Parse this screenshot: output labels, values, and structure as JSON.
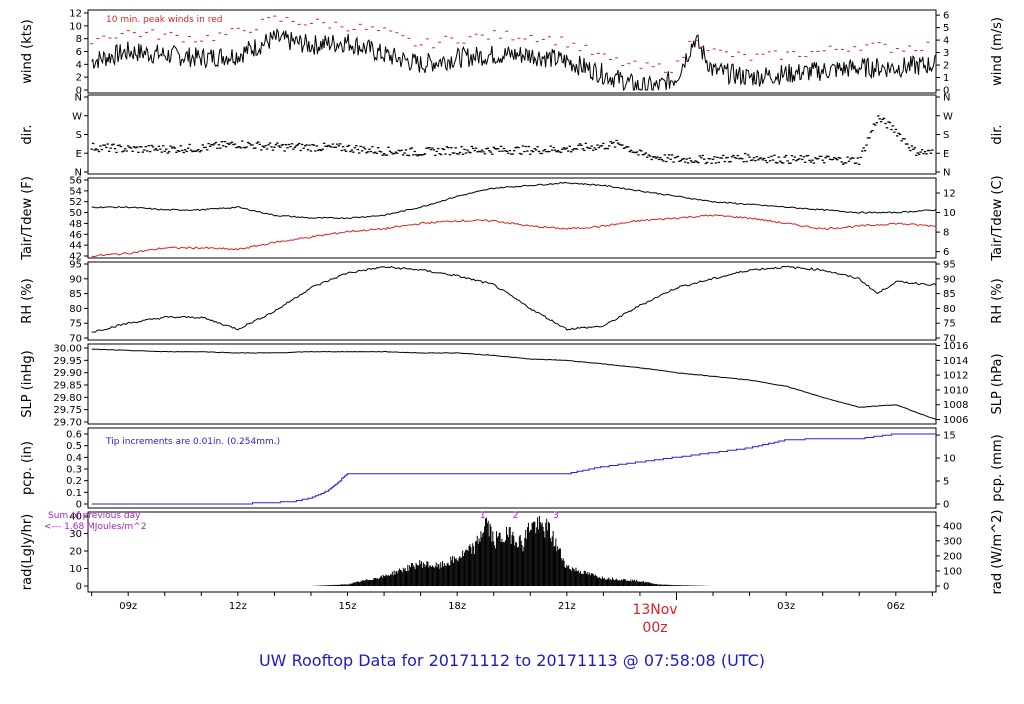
{
  "title": "UW Rooftop Data for 20171112  to  20171113 @ 07:58:08  (UTC)",
  "x_ticks": [
    "09z",
    "12z",
    "15z",
    "18z",
    "21z",
    "03z",
    "06z"
  ],
  "date_label": "13Nov",
  "date_sub_label": "00z",
  "colors": {
    "title": "#1a1acc",
    "peak": "#dd2222",
    "dew": "#dd2222",
    "pcp": "#2222dd",
    "annot_rad": "#aa22cc",
    "date": "#dd2222",
    "series": "#000000"
  },
  "chart_data": [
    {
      "type": "line",
      "ylabel": "wind (kts)",
      "ylabel_right": "wind (m/s)",
      "annotation": "10 min. peak winds in red",
      "ylim": [
        0,
        12
      ],
      "ticks_left": [
        "0",
        "2",
        "4",
        "6",
        "8",
        "10",
        "12"
      ],
      "ticks_right": [
        "0",
        "1",
        "2",
        "3",
        "4",
        "5",
        "6"
      ],
      "series": [
        {
          "x": [
            8,
            9,
            10,
            11,
            12,
            13,
            14,
            15,
            16,
            17,
            18,
            19,
            20,
            21,
            22,
            22.5,
            23,
            23.5,
            24,
            24.5,
            25,
            26,
            27,
            28,
            29,
            30,
            31.1
          ],
          "y": [
            4.5,
            6,
            5.5,
            5,
            5.5,
            8,
            7,
            7.5,
            5.5,
            4,
            5,
            5.5,
            5.5,
            4.5,
            2.5,
            1.5,
            0.5,
            0.5,
            2,
            8,
            3,
            2,
            2.5,
            3,
            3.5,
            3.5,
            4
          ]
        },
        {
          "x": [
            8,
            9,
            10,
            11,
            12,
            13,
            14,
            15,
            16,
            17,
            18,
            19,
            20,
            21,
            22,
            23,
            24,
            24.5,
            25,
            26,
            27,
            28,
            29,
            30,
            31
          ],
          "y": [
            8,
            9,
            8.5,
            8,
            9,
            11,
            10.5,
            10,
            9,
            7,
            8,
            8.5,
            8.5,
            7.5,
            5,
            3.5,
            3.5,
            8.5,
            6,
            5,
            5.5,
            6,
            7,
            6.5,
            7
          ]
        }
      ]
    },
    {
      "type": "scatter",
      "ylabel": "dir.",
      "ylabel_right": "dir.",
      "ticks_left": [
        "N",
        "E",
        "S",
        "W",
        "N"
      ],
      "ticks_right": [
        "N",
        "E",
        "S",
        "W",
        "N"
      ],
      "ylim": [
        0,
        360
      ],
      "x": [
        8,
        9,
        10,
        11,
        12,
        13,
        14,
        15,
        16,
        17,
        18,
        19,
        20,
        21,
        22,
        22.5,
        23,
        23.5,
        24,
        25,
        26,
        27,
        28,
        29,
        29.5,
        30,
        30.5,
        31
      ],
      "y": [
        120,
        110,
        110,
        115,
        135,
        120,
        120,
        115,
        100,
        95,
        105,
        105,
        105,
        110,
        125,
        135,
        85,
        70,
        60,
        60,
        70,
        60,
        60,
        55,
        260,
        200,
        100,
        90
      ]
    },
    {
      "type": "line",
      "ylabel": "Tair/Tdew (F)",
      "ylabel_right": "Tair/Tdew (C)",
      "ylim": [
        42,
        56
      ],
      "ticks_left": [
        "42",
        "44",
        "46",
        "48",
        "50",
        "52",
        "54",
        "56"
      ],
      "ticks_right": [
        "6",
        "8",
        "10",
        "12"
      ],
      "x": [
        8,
        9,
        10,
        11,
        12,
        13,
        14,
        15,
        16,
        17,
        18,
        19,
        20,
        21,
        22,
        23,
        24,
        25,
        26,
        27,
        28,
        29,
        30,
        31.1
      ],
      "series": [
        {
          "y": [
            51,
            51,
            50.5,
            50.5,
            51,
            49.5,
            49,
            49,
            49.5,
            51,
            53,
            54.5,
            55,
            55.5,
            55,
            54,
            53,
            52,
            51.5,
            51,
            50.5,
            50,
            50,
            50.5
          ]
        },
        {
          "y": [
            42,
            42.5,
            43.5,
            43.5,
            43.2,
            44.5,
            45.5,
            46.5,
            47,
            48,
            48.5,
            48.5,
            47.5,
            47,
            47.5,
            48.5,
            49,
            49.5,
            49,
            48,
            47,
            47.5,
            48,
            47.5
          ]
        }
      ]
    },
    {
      "type": "line",
      "ylabel": "RH (%)",
      "ylabel_right": "RH (%)",
      "ylim": [
        70,
        95
      ],
      "ticks_left": [
        "70",
        "75",
        "80",
        "85",
        "90",
        "95"
      ],
      "ticks_right": [
        "70",
        "75",
        "80",
        "85",
        "90",
        "95"
      ],
      "x": [
        8,
        9,
        10,
        11,
        12,
        13,
        14,
        15,
        16,
        17,
        18,
        19,
        20,
        21,
        22,
        23,
        24,
        25,
        26,
        27,
        28,
        29,
        29.5,
        30,
        31.1
      ],
      "values": [
        72,
        75,
        77,
        77,
        73,
        79,
        87,
        92,
        94,
        93,
        91,
        88,
        80,
        73,
        74,
        81,
        87,
        90,
        93,
        94,
        93,
        90,
        85,
        89,
        88
      ]
    },
    {
      "type": "line",
      "ylabel": "SLP (inHg)",
      "ylabel_right": "SLP (hPa)",
      "ylim": [
        29.7,
        30.0
      ],
      "ticks_left": [
        "29.70",
        "29.75",
        "29.80",
        "29.85",
        "29.90",
        "29.95",
        "30.00"
      ],
      "ticks_right": [
        "1006",
        "1008",
        "1010",
        "1012",
        "1014",
        "1016"
      ],
      "x": [
        8,
        9,
        10,
        11,
        12,
        13,
        14,
        15,
        16,
        17,
        18,
        19,
        20,
        21,
        22,
        23,
        24,
        25,
        26,
        27,
        28,
        29,
        30,
        31.1
      ],
      "values": [
        29.995,
        29.99,
        29.985,
        29.985,
        29.98,
        29.98,
        29.985,
        29.985,
        29.985,
        29.98,
        29.98,
        29.97,
        29.955,
        29.95,
        29.935,
        29.92,
        29.9,
        29.885,
        29.87,
        29.845,
        29.8,
        29.76,
        29.77,
        29.71
      ]
    },
    {
      "type": "area",
      "ylabel": "pcp. (in)",
      "ylabel_right": "pcp. (mm)",
      "annotation": "Tip increments are 0.01in. (0.254mm.)",
      "ylim": [
        0,
        0.6
      ],
      "ticks_left": [
        "0",
        "0.1",
        "0.2",
        "0.3",
        "0.4",
        "0.5",
        "0.6"
      ],
      "ticks_right": [
        "0",
        "5",
        "10",
        "15"
      ],
      "x": [
        8,
        12,
        13.5,
        14,
        14.5,
        15,
        16,
        20,
        21,
        22,
        23,
        24,
        25,
        26,
        27,
        28,
        29,
        30,
        31.1
      ],
      "values": [
        0,
        0,
        0.02,
        0.05,
        0.12,
        0.26,
        0.26,
        0.26,
        0.26,
        0.32,
        0.36,
        0.4,
        0.44,
        0.48,
        0.55,
        0.56,
        0.56,
        0.6,
        0.6
      ]
    },
    {
      "type": "area",
      "ylabel": "rad(Lgly/hr)",
      "ylabel_right": "rad (W/m^2)",
      "annotation": "Sum of previous day",
      "annotation2": "<--- 1.68 MJoules/m^2",
      "ylim": [
        0,
        40
      ],
      "ticks_left": [
        "0",
        "10",
        "20",
        "30",
        "40"
      ],
      "ticks_right": [
        "0",
        "100",
        "200",
        "300",
        "400"
      ],
      "peak_labels": [
        "1",
        "2",
        "3"
      ],
      "x": [
        14,
        15,
        16,
        17,
        17.5,
        18,
        18.5,
        18.8,
        19,
        19.5,
        19.8,
        20,
        20.5,
        21,
        21.5,
        22,
        22.5,
        23,
        23.5,
        24,
        25
      ],
      "values": [
        0,
        1,
        6,
        14,
        12,
        17,
        24,
        40,
        28,
        32,
        26,
        38,
        35,
        12,
        8,
        5,
        4,
        3,
        1,
        0.5,
        0
      ]
    }
  ]
}
